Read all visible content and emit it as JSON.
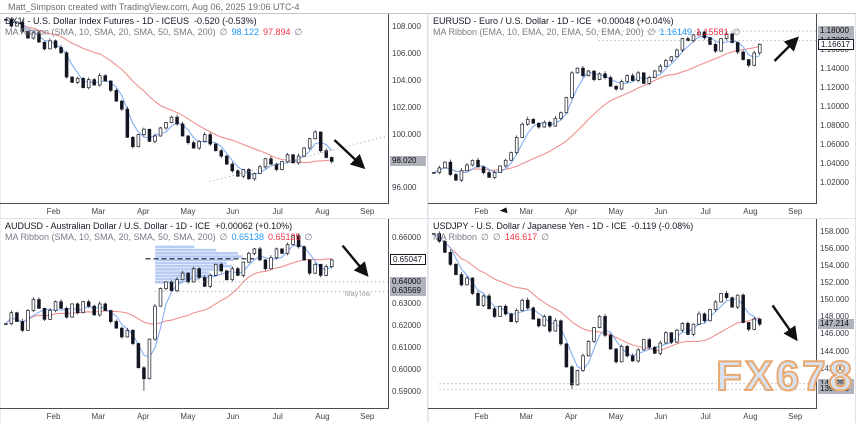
{
  "header": {
    "credit": "Matt_Simpson created with TradingView.com, Aug 06, 2025 19:06 UTC-4"
  },
  "watermark": "FX678",
  "time_axis": {
    "months": [
      "Feb",
      "Mar",
      "Apr",
      "May",
      "Jun",
      "Jul",
      "Aug",
      "Sep"
    ]
  },
  "colors": {
    "blue": "#2196f3",
    "red": "#f23645",
    "grey": "#787b86",
    "ma_fast": "#85aef2",
    "ma_slow": "#ee9090",
    "candle_up": "#ffffff",
    "candle_down": "#131722",
    "label_grey_bg": "#b0b3bb",
    "watermark_fill": "#d8e2f1",
    "watermark_stroke": "#e8aa72"
  },
  "chart_data": [
    {
      "type": "candlestick",
      "title": "DX1! - U.S. Dollar Index Futures - 1D - ICEUS",
      "change": "-0.520 (-0.53%)",
      "indicator": "MA Ribbon (SMA, 10, SMA, 20, SMA, 50, SMA, 200)",
      "legend_values": [
        {
          "t": "∅",
          "c": "grey"
        },
        {
          "t": "98.122",
          "c": "blue"
        },
        {
          "t": "97.894",
          "c": "red"
        },
        {
          "t": "∅",
          "c": "grey"
        }
      ],
      "ylim": [
        94.9,
        109.0
      ],
      "yticks": [
        {
          "v": 108,
          "label": "108.000"
        },
        {
          "v": 106,
          "label": "106.000"
        },
        {
          "v": 104,
          "label": "104.000"
        },
        {
          "v": 102,
          "label": "102.000"
        },
        {
          "v": 100,
          "label": "100.000"
        },
        {
          "v": 96,
          "label": "96.000"
        }
      ],
      "last": {
        "v": 98.02,
        "label": "98.020",
        "style": "grey"
      },
      "levels": [],
      "closes": [
        108.6,
        108.1,
        108.4,
        107.7,
        107.2,
        107.6,
        106.9,
        106.4,
        107.0,
        106.5,
        106.1,
        104.3,
        103.9,
        104.2,
        103.5,
        104.1,
        103.7,
        104.4,
        104.0,
        103.3,
        102.5,
        101.9,
        99.8,
        99.1,
        100.0,
        100.4,
        99.5,
        99.9,
        100.5,
        100.9,
        101.3,
        100.8,
        99.9,
        99.4,
        99.0,
        99.5,
        100.0,
        99.3,
        98.8,
        98.4,
        97.8,
        97.3,
        96.9,
        97.4,
        96.7,
        97.1,
        97.6,
        98.2,
        97.8,
        97.4,
        98.0,
        98.5,
        97.9,
        98.4,
        99.0,
        99.7,
        100.2,
        98.8,
        98.3,
        98.0
      ],
      "annotations": {
        "trendline": {
          "x1": 0.54,
          "p1": 96.5,
          "x2": 1.0,
          "p2": 99.9
        },
        "arrow": {
          "x1": 0.862,
          "p1": 99.6,
          "x2": 0.928,
          "p2": 97.8
        }
      }
    },
    {
      "type": "candlestick",
      "title": "EURUSD - Euro / U.S. Dollar - 1D - ICE",
      "change": "+0.00048 (+0.04%)",
      "indicator": "MA Ribbon (EMA, 10, EMA, 20, EMA, 50, EMA, 200)",
      "legend_values": [
        {
          "t": "∅",
          "c": "grey"
        },
        {
          "t": "1.16149",
          "c": "blue"
        },
        {
          "t": "1.15581",
          "c": "red"
        },
        {
          "t": "∅",
          "c": "grey"
        }
      ],
      "ylim": [
        0.999,
        1.198
      ],
      "yticks": [
        {
          "v": 1.16,
          "label": "1.16000"
        },
        {
          "v": 1.14,
          "label": "1.14000"
        },
        {
          "v": 1.12,
          "label": "1.12000"
        },
        {
          "v": 1.1,
          "label": "1.10000"
        },
        {
          "v": 1.08,
          "label": "1.08000"
        },
        {
          "v": 1.06,
          "label": "1.06000"
        },
        {
          "v": 1.04,
          "label": "1.04000"
        },
        {
          "v": 1.02,
          "label": "1.02000"
        }
      ],
      "last": {
        "v": 1.16617,
        "label": "1.16617",
        "style": "white"
      },
      "levels": [
        {
          "v": 1.18,
          "label": "1.18000"
        },
        {
          "v": 1.17,
          "label": "1.17000"
        }
      ],
      "closes": [
        1.031,
        1.036,
        1.042,
        1.029,
        1.023,
        1.033,
        1.039,
        1.044,
        1.037,
        1.031,
        1.026,
        1.031,
        1.038,
        1.044,
        1.052,
        1.068,
        1.082,
        1.087,
        1.083,
        1.079,
        1.084,
        1.08,
        1.088,
        1.094,
        1.11,
        1.136,
        1.141,
        1.133,
        1.138,
        1.129,
        1.135,
        1.131,
        1.122,
        1.119,
        1.127,
        1.133,
        1.128,
        1.136,
        1.125,
        1.131,
        1.138,
        1.143,
        1.149,
        1.153,
        1.16,
        1.172,
        1.17,
        1.176,
        1.179,
        1.173,
        1.166,
        1.159,
        1.172,
        1.177,
        1.168,
        1.158,
        1.15,
        1.144,
        1.157,
        1.166
      ],
      "annotations": {
        "hlines": [
          {
            "p": 1.18,
            "from": 0.44
          },
          {
            "p": 1.17,
            "from": 0.44
          }
        ],
        "arrow": {
          "x1": 0.893,
          "p1": 1.1485,
          "x2": 0.943,
          "p2": 1.169
        }
      }
    },
    {
      "type": "candlestick",
      "title": "AUDUSD - Australian Dollar / U.S. Dollar - 1D - ICE",
      "change": "+0.00062 (+0.10%)",
      "indicator": "MA Ribbon (SMA, 10, SMA, 20, SMA, 50, SMA, 200)",
      "legend_values": [
        {
          "t": "∅",
          "c": "grey"
        },
        {
          "t": "0.65138",
          "c": "blue"
        },
        {
          "t": "0.65125",
          "c": "red"
        },
        {
          "t": "∅",
          "c": "grey"
        }
      ],
      "ylim": [
        0.5827,
        0.6686
      ],
      "yticks": [
        {
          "v": 0.66,
          "label": "0.66000"
        },
        {
          "v": 0.63,
          "label": "0.63000"
        },
        {
          "v": 0.62,
          "label": "0.62000"
        },
        {
          "v": 0.61,
          "label": "0.61000"
        },
        {
          "v": 0.6,
          "label": "0.60000"
        },
        {
          "v": 0.59,
          "label": "0.59000"
        }
      ],
      "last": {
        "v": 0.65047,
        "label": "0.65047",
        "style": "white"
      },
      "levels": [
        {
          "v": 0.64,
          "label": "0.64000"
        },
        {
          "v": 0.63569,
          "label": "0.63569"
        }
      ],
      "closes": [
        0.621,
        0.626,
        0.622,
        0.618,
        0.627,
        0.632,
        0.628,
        0.623,
        0.627,
        0.631,
        0.628,
        0.624,
        0.63,
        0.626,
        0.631,
        0.629,
        0.625,
        0.63,
        0.627,
        0.622,
        0.619,
        0.615,
        0.618,
        0.612,
        0.601,
        0.596,
        0.614,
        0.629,
        0.637,
        0.64,
        0.636,
        0.641,
        0.644,
        0.64,
        0.646,
        0.642,
        0.638,
        0.643,
        0.648,
        0.645,
        0.641,
        0.646,
        0.643,
        0.649,
        0.653,
        0.655,
        0.65,
        0.646,
        0.651,
        0.655,
        0.653,
        0.657,
        0.661,
        0.656,
        0.65,
        0.644,
        0.648,
        0.643,
        0.647,
        0.65
      ],
      "spike": {
        "i": 25,
        "low": 0.5905
      },
      "annotations": {
        "hlines": [
          {
            "p": 0.64,
            "from": 0.4
          },
          {
            "p": 0.63569,
            "from": 0.4
          }
        ],
        "zone": {
          "x1": 0.4,
          "x2": 0.625,
          "p1": 0.639,
          "p2": 0.6565,
          "dash_p": 0.6505,
          "dash_x1": 0.375,
          "dash_x2": 0.655,
          "bars": [
            0.45,
            0.7,
            0.95,
            1.0,
            0.9,
            0.82,
            0.88,
            0.75,
            0.62,
            0.7,
            0.5,
            0.32
          ]
        },
        "texts": [
          {
            "x": 0.955,
            "p": 0.6335,
            "t": "May low"
          }
        ],
        "arrow": {
          "x1": 0.883,
          "p1": 0.6565,
          "x2": 0.938,
          "p2": 0.6448
        }
      }
    },
    {
      "type": "candlestick",
      "title": "USDJPY - U.S. Dollar / Japanese Yen - 1D - ICE",
      "change": "-0.119 (-0.08%)",
      "indicator": "MA Ribbon",
      "legend_values": [
        {
          "t": "∅",
          "c": "grey"
        },
        {
          "t": "∅",
          "c": "grey"
        },
        {
          "t": "146.617",
          "c": "red"
        },
        {
          "t": "∅",
          "c": "grey"
        }
      ],
      "ylim": [
        137.4,
        159.5
      ],
      "yticks": [
        {
          "v": 158,
          "label": "158.000"
        },
        {
          "v": 156,
          "label": "156.000"
        },
        {
          "v": 154,
          "label": "154.000"
        },
        {
          "v": 152,
          "label": "152.000"
        },
        {
          "v": 150,
          "label": "150.000"
        },
        {
          "v": 148,
          "label": "148.000"
        },
        {
          "v": 146,
          "label": "146.000"
        },
        {
          "v": 144,
          "label": "144.000"
        },
        {
          "v": 142,
          "label": "142.000"
        }
      ],
      "last": {
        "v": 147.214,
        "label": "147.214",
        "style": "grey"
      },
      "levels": [
        {
          "v": 140.255,
          "label": "140.255"
        },
        {
          "v": 139.583,
          "label": "139.583"
        }
      ],
      "closes": [
        157.8,
        156.9,
        155.6,
        154.2,
        153.0,
        151.8,
        152.6,
        150.8,
        149.4,
        150.5,
        149.0,
        148.1,
        149.3,
        148.4,
        147.5,
        148.8,
        150.0,
        149.1,
        147.8,
        147.0,
        148.1,
        146.4,
        147.6,
        144.9,
        142.2,
        140.1,
        141.8,
        143.5,
        145.2,
        146.8,
        148.1,
        145.9,
        144.3,
        142.8,
        144.6,
        143.5,
        142.9,
        144.2,
        145.4,
        144.5,
        143.8,
        145.0,
        146.2,
        145.1,
        146.5,
        147.3,
        146.0,
        147.2,
        148.4,
        147.6,
        148.9,
        149.8,
        150.8,
        150.3,
        149.2,
        150.6,
        147.4,
        146.6,
        147.8,
        147.2
      ],
      "spike": {
        "i": 25,
        "low": 139.62
      },
      "annotations": {
        "hlines": [
          {
            "p": 140.255,
            "from": 0.03
          },
          {
            "p": 139.583,
            "from": 0.03
          }
        ],
        "arrow": {
          "x1": 0.888,
          "p1": 149.4,
          "x2": 0.942,
          "p2": 145.9
        }
      }
    }
  ]
}
